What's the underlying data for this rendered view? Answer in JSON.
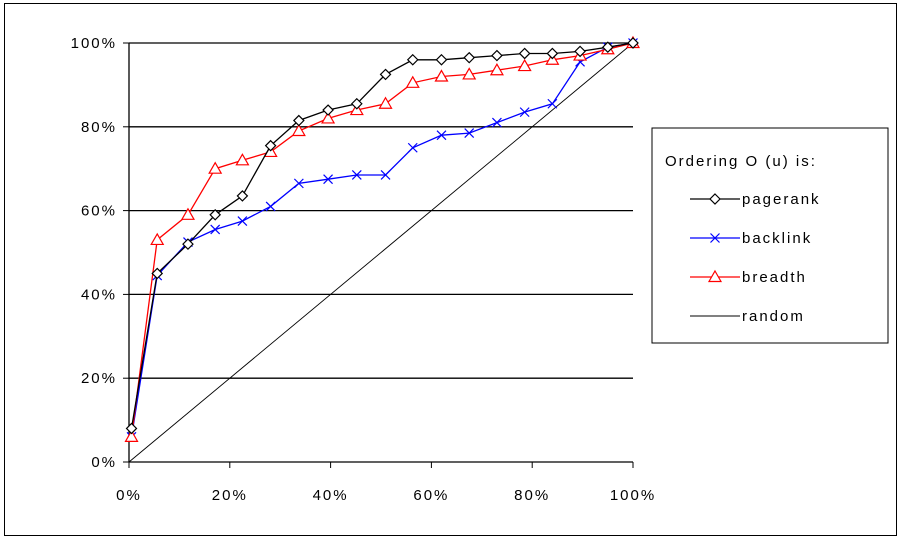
{
  "chart_data": {
    "type": "line",
    "title": "",
    "xlabel": "",
    "ylabel": "",
    "xlim": [
      0,
      100
    ],
    "ylim": [
      0,
      100
    ],
    "grid": "horizontal",
    "legend_title": "Ordering O (u) is:",
    "legend_position": "right",
    "x_tick_labels": [
      "0%",
      "20%",
      "40%",
      "60%",
      "80%",
      "100%"
    ],
    "y_tick_labels": [
      "0%",
      "20%",
      "40%",
      "60%",
      "80%",
      "100%"
    ],
    "series": [
      {
        "name": "pagerank",
        "color": "#000000",
        "marker": "diamond",
        "x": [
          0.5,
          5.6,
          11.7,
          17.1,
          22.5,
          28.1,
          33.7,
          39.5,
          45.2,
          50.9,
          56.3,
          62,
          67.5,
          73,
          78.5,
          84,
          89.5,
          95,
          100
        ],
        "y": [
          8,
          45,
          52,
          59,
          63.5,
          75.5,
          81.5,
          84,
          85.5,
          92.5,
          96,
          96,
          96.5,
          97,
          97.5,
          97.5,
          98,
          99,
          100
        ]
      },
      {
        "name": "backlink",
        "color": "#0000ff",
        "marker": "x",
        "x": [
          0.5,
          5.6,
          11.7,
          17.1,
          22.5,
          28.1,
          33.7,
          39.5,
          45.2,
          50.9,
          56.3,
          62,
          67.5,
          73,
          78.5,
          84,
          89.5,
          95,
          100
        ],
        "y": [
          6,
          44.5,
          52.5,
          55.5,
          57.5,
          61,
          66.5,
          67.5,
          68.5,
          68.5,
          75,
          78,
          78.5,
          81,
          83.5,
          85.5,
          95.5,
          99,
          100
        ]
      },
      {
        "name": "breadth",
        "color": "#ff0000",
        "marker": "triangle",
        "x": [
          0.5,
          5.6,
          11.7,
          17.1,
          22.5,
          28.1,
          33.7,
          39.5,
          45.2,
          50.9,
          56.3,
          62,
          67.5,
          73,
          78.5,
          84,
          89.5,
          95,
          100
        ],
        "y": [
          6,
          53,
          59,
          70,
          72,
          74,
          79,
          82,
          84,
          85.5,
          90.5,
          92,
          92.5,
          93.5,
          94.5,
          96,
          97,
          98.5,
          100
        ]
      },
      {
        "name": "random",
        "color": "#000000",
        "marker": "none",
        "x": [
          0,
          100
        ],
        "y": [
          0,
          100
        ]
      }
    ]
  }
}
